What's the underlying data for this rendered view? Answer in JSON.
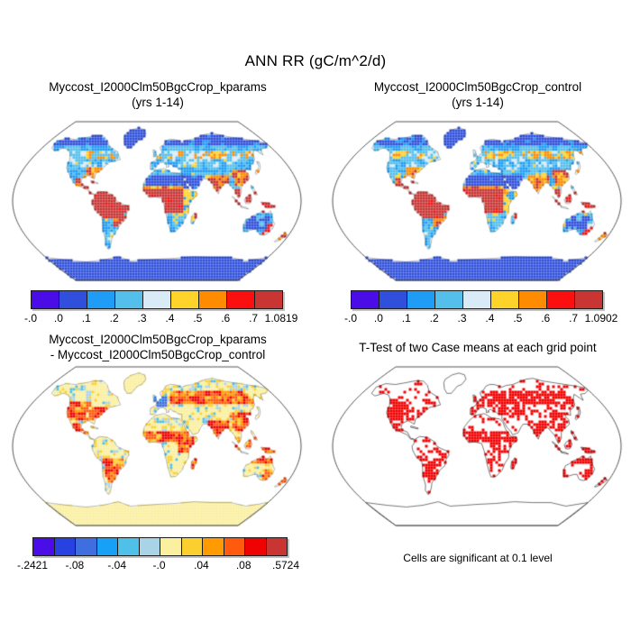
{
  "figure": {
    "title": "ANN RR (gC/m^2/d)",
    "variable": "ANN RR",
    "units": "gC/m^2/d"
  },
  "chart_data": [
    {
      "id": "case1-map",
      "type": "heatmap",
      "map_projection": "Robinson",
      "title": "Myccost_I2000Clm50BgcCrop_kparams",
      "subtitle": "(yrs 1-14)",
      "data_min": -0.0,
      "data_max": 1.0819,
      "colorbar": {
        "segments": 9,
        "segment_colors": [
          "#4a0de8",
          "#2f4fdc",
          "#1f9cf5",
          "#55bfec",
          "#d9ebf6",
          "#ffd42a",
          "#ff8c00",
          "#fb0f0f",
          "#c83532"
        ],
        "tick_labels": [
          "-.0",
          ".0",
          ".1",
          ".2",
          ".3",
          ".4",
          ".5",
          ".6",
          ".7",
          "1.0819"
        ],
        "tick_positions": [
          0,
          1,
          2,
          3,
          4,
          5,
          6,
          7,
          8,
          9
        ]
      },
      "region_summary": "Red (high RR) over Amazon, Congo, SE Asia/Indonesia, Central America, SE US, S China, India, E Madagascar, N Australia; royal blue (low) over Sahara, Arabia, central Australia, high latitudes, Greenland, Antarctica; yellow-orange boreal speckle band ~50-62N"
    },
    {
      "id": "case2-map",
      "type": "heatmap",
      "map_projection": "Robinson",
      "title": "Myccost_I2000Clm50BgcCrop_control",
      "subtitle": "(yrs 1-14)",
      "data_min": -0.0,
      "data_max": 1.0902,
      "colorbar": {
        "segments": 9,
        "segment_colors": [
          "#4a0de8",
          "#2f4fdc",
          "#1f9cf5",
          "#55bfec",
          "#d9ebf6",
          "#ffd42a",
          "#ff8c00",
          "#fb0f0f",
          "#c83532"
        ],
        "tick_labels": [
          "-.0",
          ".0",
          ".1",
          ".2",
          ".3",
          ".4",
          ".5",
          ".6",
          ".7",
          "1.0902"
        ],
        "tick_positions": [
          0,
          1,
          2,
          3,
          4,
          5,
          6,
          7,
          8,
          9
        ]
      },
      "region_summary": "Nearly identical spatial pattern to kparams case"
    },
    {
      "id": "difference-map",
      "type": "heatmap",
      "map_projection": "Robinson",
      "title": "Myccost_I2000Clm50BgcCrop_kparams",
      "subtitle": "- Myccost_I2000Clm50BgcCrop_control",
      "data_min": -0.2421,
      "data_max": 0.5724,
      "colorbar": {
        "segments": 12,
        "segment_colors": [
          "#4a0de8",
          "#2742e0",
          "#3f6ede",
          "#18a0f6",
          "#4fc0e8",
          "#a9d4e8",
          "#faf0a0",
          "#fccf30",
          "#ff9b00",
          "#ff5a0d",
          "#ee0202",
          "#c83532"
        ],
        "tick_labels": [
          "-.2421",
          "-.08",
          "-.04",
          "-.0",
          ".04",
          ".08",
          ".5724"
        ],
        "tick_positions": [
          0,
          2,
          4,
          6,
          8,
          10,
          12
        ]
      },
      "region_summary": "Background pale yellow with light-blue speckle; strong positive (orange/red) over US, Mexico, SE South America, Sahel, E Africa, Madagascar, Eurasian band 48-62N, India, E China, SE Asia/Indonesia, N+E Australia, New Zealand; negative (blue) patch over UK/France/Germany; Greenland and Antarctica pale yellow"
    },
    {
      "id": "ttest-map",
      "type": "significance-stipple-map",
      "map_projection": "Robinson",
      "title": "T-Test of two Case means at each grid point",
      "caption": "Cells are significant at 0.1 level",
      "significance_level": "0.1",
      "significant_color": "#f20000",
      "region_summary": "Red significant cells dense over US, Mexico, Europe, Eurasian mid-latitude band, India, China, SE Asia, Indonesia, Sahel and central Africa, Madagascar, SE South America, SE Australia, New Zealand; sparse over Sahara, Arabia, high-latitude Canada; none over Greenland and Antarctica"
    }
  ]
}
